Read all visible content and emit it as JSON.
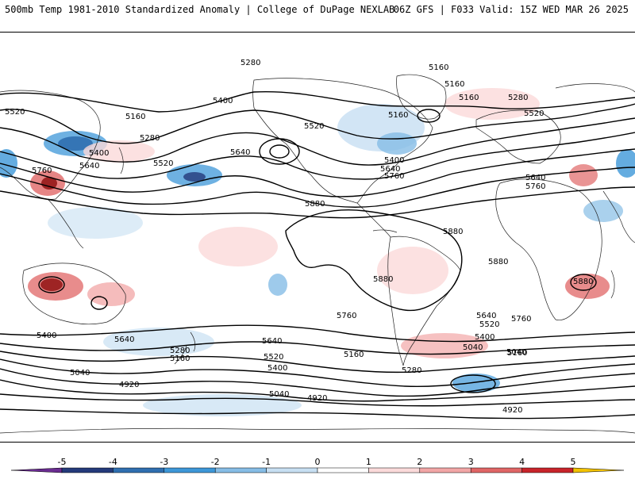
{
  "header": {
    "title": "500mb Temp 1981-2010 Standardized Anomaly | College of DuPage NEXLAB",
    "run_info": "06Z GFS | F033 Valid: 15Z WED MAR 26 2025"
  },
  "contours": {
    "color": "#000000",
    "labels": [
      "5280",
      "5160",
      "5160",
      "5520",
      "5160",
      "5400",
      "5280",
      "5400",
      "5640",
      "5520",
      "5760",
      "5640",
      "5520",
      "5160",
      "5400",
      "5640",
      "5760",
      "5160",
      "5280",
      "5520",
      "5640",
      "5760",
      "5880",
      "5880",
      "5880",
      "5880",
      "5880",
      "5760",
      "5640",
      "5760",
      "5640",
      "5400",
      "5520",
      "5400",
      "5640",
      "5520",
      "5040",
      "5400",
      "5160",
      "5280",
      "5160",
      "5040",
      "4920",
      "5040",
      "4920",
      "4920",
      "5280",
      "5160",
      "5040"
    ]
  },
  "colorbar": {
    "ticks": [
      "-5",
      "-4",
      "-3",
      "-2",
      "-1",
      "0",
      "1",
      "2",
      "3",
      "4",
      "5"
    ],
    "colors": [
      "#6a2c91",
      "#243a7a",
      "#2f6fb0",
      "#3d97d8",
      "#86bde6",
      "#c7dff2",
      "#ffffff",
      "#fbdada",
      "#f2a6a6",
      "#e06666",
      "#c8242a",
      "#8b0a0a",
      "#f2c200"
    ]
  }
}
